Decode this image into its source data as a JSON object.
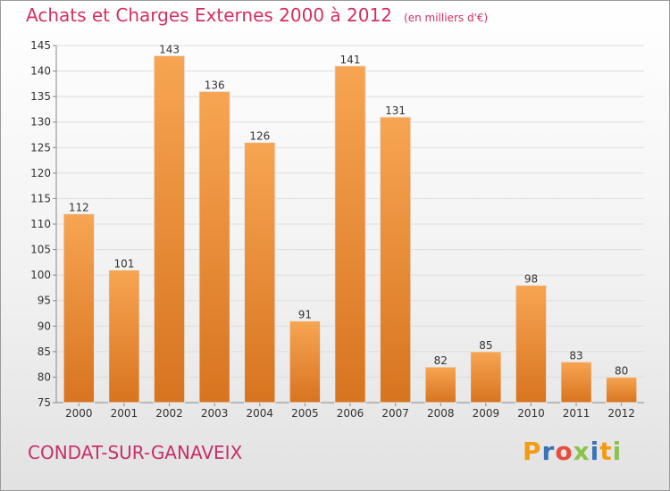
{
  "chart_data": {
    "type": "bar",
    "title": "Achats et Charges Externes 2000 à 2012",
    "unit_note": "(en milliers d'€)",
    "categories": [
      "2000",
      "2001",
      "2002",
      "2003",
      "2004",
      "2005",
      "2006",
      "2007",
      "2008",
      "2009",
      "2010",
      "2011",
      "2012"
    ],
    "values": [
      112,
      101,
      143,
      136,
      126,
      91,
      141,
      131,
      82,
      85,
      98,
      83,
      80
    ],
    "ylim": [
      75,
      145
    ],
    "yticks": [
      75,
      80,
      85,
      90,
      95,
      100,
      105,
      110,
      115,
      120,
      125,
      130,
      135,
      140,
      145
    ],
    "grid": true,
    "bar_color": "#f0943c",
    "xlabel": "",
    "ylabel": ""
  },
  "footer": {
    "town": "CONDAT-SUR-GANAVEIX",
    "brand": "Proxiti"
  },
  "colors": {
    "title": "#d33060",
    "town": "#c4306a",
    "brand_letters": [
      "#f39c12",
      "#3b73b9",
      "#e74c3c",
      "#8bc34a",
      "#3b73b9",
      "#f39c12",
      "#8bc34a"
    ]
  }
}
